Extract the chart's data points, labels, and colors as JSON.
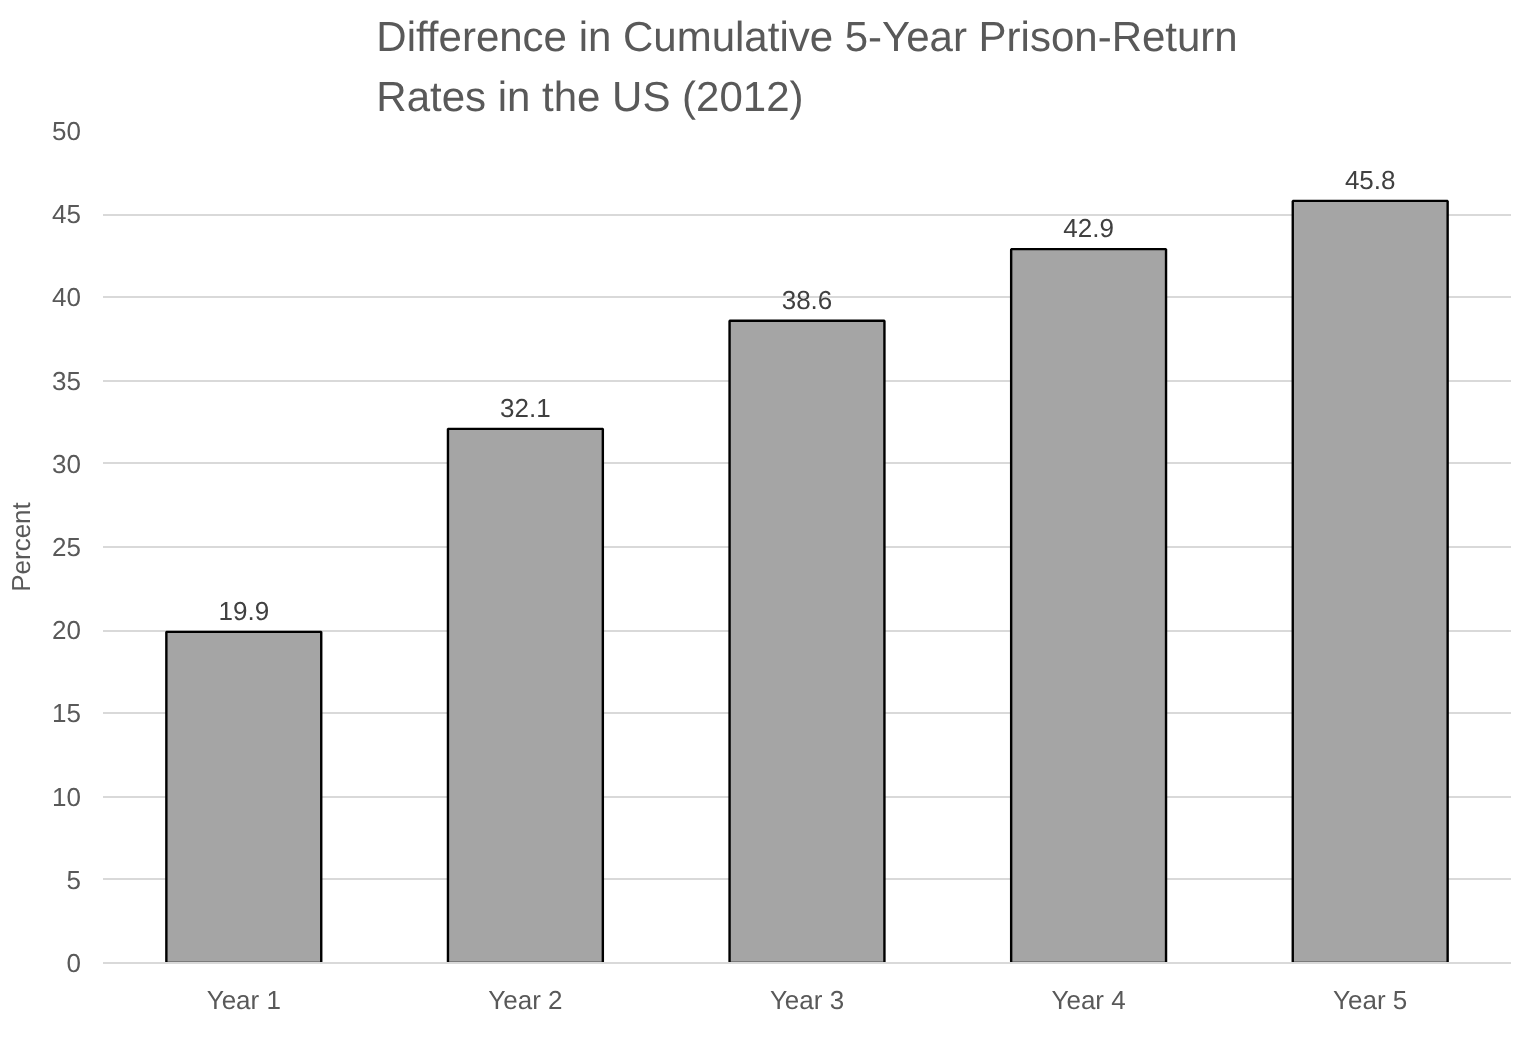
{
  "chart_data": {
    "type": "bar",
    "title": "Difference in Cumulative 5-Year Prison-Return Rates in the US (2012)",
    "ylabel": "Percent",
    "categories": [
      "Year 1",
      "Year 2",
      "Year 3",
      "Year 4",
      "Year 5"
    ],
    "values": [
      19.9,
      32.1,
      38.6,
      42.9,
      45.8
    ],
    "color": "#a5a5a5",
    "ylim": [
      0,
      50
    ],
    "yticks": [
      0,
      5,
      10,
      15,
      20,
      25,
      30,
      35,
      40,
      45,
      50
    ],
    "grid": "y",
    "data_labels": true
  }
}
